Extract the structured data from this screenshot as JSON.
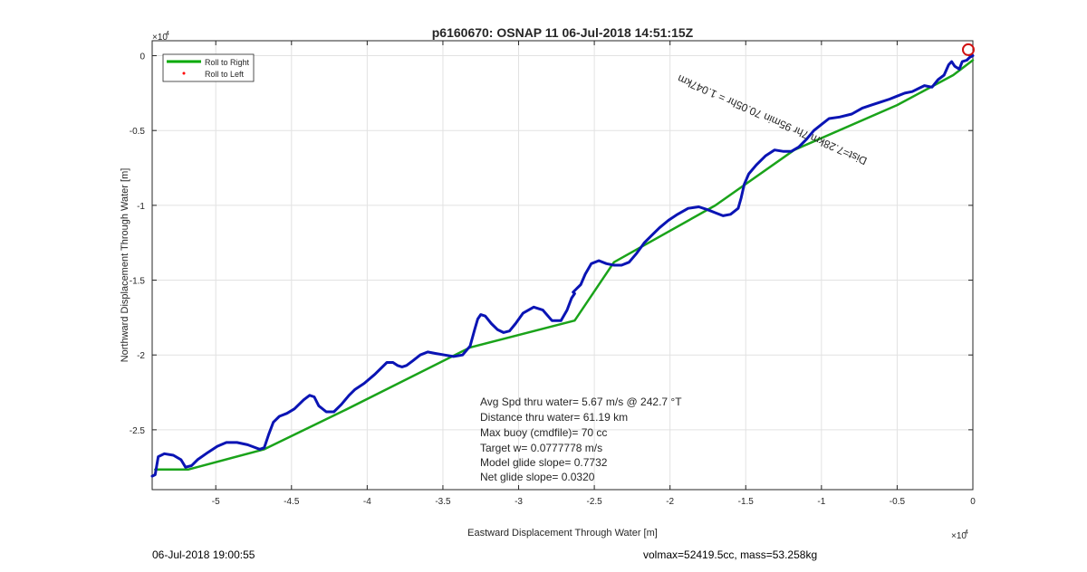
{
  "chart_data": {
    "type": "line",
    "title": "p6160670: OSNAP 11 06-Jul-2018 14:51:15Z",
    "xlabel": "Eastward Displacement Through Water [m]",
    "ylabel": "Northward Displacement Through Water [m]",
    "x_exponent_label": "×10",
    "x_exponent": "4",
    "y_exponent_label": "×10",
    "y_exponent": "4",
    "xlim": [
      -54200,
      0
    ],
    "ylim": [
      -29000,
      1000
    ],
    "x_ticks": [
      -50000,
      -45000,
      -40000,
      -35000,
      -30000,
      -25000,
      -20000,
      -15000,
      -10000,
      -5000,
      0
    ],
    "x_tick_labels": [
      "-5",
      "-4.5",
      "-4",
      "-3.5",
      "-3",
      "-2.5",
      "-2",
      "-1.5",
      "-1",
      "-0.5",
      "0"
    ],
    "y_ticks": [
      0,
      -5000,
      -10000,
      -15000,
      -20000,
      -25000
    ],
    "y_tick_labels": [
      "0",
      "-0.5",
      "-1",
      "-1.5",
      "-2",
      "-2.5"
    ],
    "grid": true,
    "legend_position": "top-left",
    "legend": [
      {
        "label": "Roll to Right",
        "color": "#00aa00",
        "marker": "line"
      },
      {
        "label": "Roll to Left",
        "color": "#ff0000",
        "marker": "dot"
      }
    ],
    "series": [
      {
        "name": "Roll to Right",
        "color": "#1aa31a",
        "x": [
          -54000,
          -51800,
          -46800,
          -41500,
          -33200,
          -26300,
          -23700,
          -17000,
          -11800,
          -5000,
          -1300,
          0
        ],
        "y": [
          -27650,
          -27650,
          -26300,
          -23700,
          -19500,
          -17700,
          -13800,
          -10000,
          -6300,
          -3300,
          -1300,
          -300
        ]
      },
      {
        "color": "#0a14b4",
        "x": [
          -54200,
          -54000,
          -53800,
          -53400,
          -52800,
          -52300,
          -52000,
          -51600,
          -51200,
          -50500,
          -49900,
          -49300,
          -48600,
          -47900,
          -47100,
          -46800,
          -46500,
          -46200,
          -45800,
          -45300,
          -44800,
          -44200,
          -43800,
          -43500,
          -43200,
          -42700,
          -42200,
          -41700,
          -41200,
          -40800,
          -40200,
          -39500,
          -38700,
          -38300,
          -38000,
          -37700,
          -37400,
          -37000,
          -36500,
          -36000,
          -35500,
          -34900,
          -34300,
          -33700,
          -33200,
          -32900,
          -32700,
          -32500,
          -32200,
          -31800,
          -31400,
          -31000,
          -30600,
          -30200,
          -29700,
          -29000,
          -28400,
          -27800,
          -27200,
          -26800,
          -26500,
          -26300,
          -26400,
          -26200,
          -25900,
          -25600,
          -25200,
          -24700,
          -24200,
          -23700,
          -23200,
          -22700,
          -22200,
          -21700,
          -21200,
          -20700,
          -20100,
          -19500,
          -18800,
          -18100,
          -17500,
          -17000,
          -16500,
          -16000,
          -15500,
          -15300,
          -15100,
          -14800,
          -14300,
          -13700,
          -13100,
          -12500,
          -12000,
          -11500,
          -11000,
          -10500,
          -10000,
          -9500,
          -8800,
          -8000,
          -7300,
          -6700,
          -6100,
          -5500,
          -5000,
          -4500,
          -4000,
          -3600,
          -3200,
          -2700,
          -2300,
          -1900,
          -1600,
          -1400,
          -1200,
          -900,
          -700,
          -400,
          -200,
          0
        ],
        "y": [
          -28100,
          -28000,
          -26800,
          -26600,
          -26700,
          -27000,
          -27500,
          -27400,
          -27000,
          -26500,
          -26100,
          -25850,
          -25850,
          -26000,
          -26300,
          -26200,
          -25300,
          -24500,
          -24100,
          -23900,
          -23600,
          -23000,
          -22700,
          -22800,
          -23400,
          -23800,
          -23800,
          -23300,
          -22700,
          -22300,
          -21900,
          -21300,
          -20500,
          -20500,
          -20700,
          -20800,
          -20700,
          -20400,
          -20000,
          -19800,
          -19900,
          -20000,
          -20100,
          -20000,
          -19400,
          -18300,
          -17600,
          -17300,
          -17400,
          -17900,
          -18300,
          -18500,
          -18400,
          -17900,
          -17200,
          -16800,
          -17000,
          -17700,
          -17700,
          -17000,
          -16200,
          -15900,
          -15800,
          -15600,
          -15300,
          -14600,
          -13900,
          -13700,
          -13900,
          -14000,
          -14000,
          -13800,
          -13200,
          -12500,
          -12000,
          -11500,
          -11000,
          -10600,
          -10200,
          -10100,
          -10300,
          -10500,
          -10700,
          -10600,
          -10200,
          -9500,
          -8600,
          -7900,
          -7300,
          -6700,
          -6300,
          -6400,
          -6400,
          -6100,
          -5600,
          -5000,
          -4600,
          -4200,
          -4100,
          -3900,
          -3500,
          -3300,
          -3100,
          -2900,
          -2700,
          -2500,
          -2400,
          -2200,
          -2000,
          -2100,
          -1600,
          -1300,
          -600,
          -400,
          -700,
          -900,
          -400,
          -300,
          -100,
          0
        ]
      }
    ],
    "annotations": {
      "trace_label": "Dist=7.28km 7hr 95min 70.05hr = 1.047km",
      "stats": [
        "Avg Spd thru water=  5.67 m/s @ 242.7 °T",
        "Distance thru water= 61.19 km",
        "Max buoy (cmdfile)= 70 cc",
        "Target w= 0.0777778 m/s",
        "Model glide slope= 0.7732",
        "Net glide slope= 0.0320"
      ],
      "start_marker": {
        "x": -300,
        "y": 400,
        "color": "#d01010"
      }
    }
  },
  "footer": {
    "left": "06-Jul-2018 19:00:55",
    "right": "volmax=52419.5cc, mass=53.258kg"
  }
}
